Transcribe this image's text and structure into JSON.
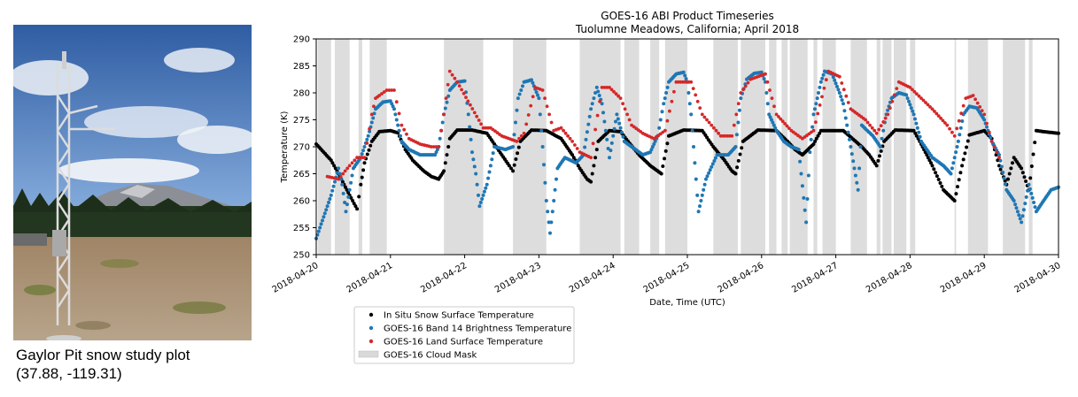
{
  "photo": {
    "caption_line1": "Gaylor Pit snow study plot",
    "caption_line2": "(37.88, -119.31)"
  },
  "colors": {
    "in_situ": "#000000",
    "band14": "#1f77b4",
    "lst": "#d62728",
    "cloud": "#d9d9d9"
  },
  "chart_data": {
    "type": "scatter",
    "title": "GOES-16 ABI Product Timeseries",
    "subtitle": "Tuolumne Meadows, California; April 2018",
    "xlabel": "Date, Time (UTC)",
    "ylabel": "Temperature (K)",
    "xlim": [
      0,
      10
    ],
    "ylim": [
      250,
      290
    ],
    "yticks": [
      250,
      255,
      260,
      265,
      270,
      275,
      280,
      285,
      290
    ],
    "xtick_labels": [
      "2018-04-20",
      "2018-04-21",
      "2018-04-22",
      "2018-04-23",
      "2018-04-24",
      "2018-04-25",
      "2018-04-26",
      "2018-04-27",
      "2018-04-28",
      "2018-04-29",
      "2018-04-30"
    ],
    "legend": {
      "placement": "bottom-left, below axes",
      "entries": [
        "In Situ Snow Surface Temperature",
        "GOES-16 Band 14 Brightness Temperature",
        "GOES-16 Land Surface Temperature",
        "GOES-16 Cloud Mask"
      ]
    },
    "x_unit": "days since 2018-04-20 00:00 UTC",
    "series": [
      {
        "name": "In Situ Snow Surface Temperature",
        "points": [
          [
            0,
            270.5
          ],
          [
            0.1,
            269
          ],
          [
            0.2,
            267.5
          ],
          [
            0.3,
            265
          ],
          [
            0.45,
            261
          ],
          [
            0.55,
            258.5
          ],
          [
            0.6,
            263
          ],
          [
            0.65,
            267
          ],
          [
            0.75,
            271
          ],
          [
            0.85,
            272.8
          ],
          [
            1.0,
            273
          ],
          [
            1.1,
            272.6
          ],
          [
            1.2,
            269.5
          ],
          [
            1.3,
            267.5
          ],
          [
            1.45,
            265.5
          ],
          [
            1.55,
            264.5
          ],
          [
            1.65,
            264
          ],
          [
            1.72,
            265.5
          ],
          [
            1.8,
            271.5
          ],
          [
            1.9,
            273.1
          ],
          [
            2.1,
            273.1
          ],
          [
            2.3,
            272.5
          ],
          [
            2.4,
            270.5
          ],
          [
            2.5,
            268.5
          ],
          [
            2.6,
            266.5
          ],
          [
            2.65,
            265.5
          ],
          [
            2.75,
            271
          ],
          [
            2.9,
            273.1
          ],
          [
            3.1,
            273
          ],
          [
            3.3,
            271.5
          ],
          [
            3.45,
            268.5
          ],
          [
            3.55,
            266
          ],
          [
            3.65,
            264
          ],
          [
            3.7,
            263.5
          ],
          [
            3.8,
            271
          ],
          [
            3.95,
            273
          ],
          [
            4.1,
            272.8
          ],
          [
            4.2,
            271
          ],
          [
            4.35,
            268.5
          ],
          [
            4.5,
            266.5
          ],
          [
            4.6,
            265.5
          ],
          [
            4.65,
            265
          ],
          [
            4.75,
            272
          ],
          [
            4.95,
            273.1
          ],
          [
            5.2,
            273
          ],
          [
            5.35,
            270
          ],
          [
            5.5,
            267.5
          ],
          [
            5.6,
            265.5
          ],
          [
            5.65,
            265
          ],
          [
            5.75,
            271
          ],
          [
            5.95,
            273.1
          ],
          [
            6.2,
            273
          ],
          [
            6.35,
            271
          ],
          [
            6.45,
            269.5
          ],
          [
            6.55,
            268.5
          ],
          [
            6.7,
            270.5
          ],
          [
            6.8,
            273
          ],
          [
            7.1,
            273
          ],
          [
            7.35,
            270
          ],
          [
            7.45,
            268.5
          ],
          [
            7.55,
            266.5
          ],
          [
            7.65,
            271
          ],
          [
            7.8,
            273.1
          ],
          [
            8.05,
            273
          ],
          [
            8.15,
            270.5
          ],
          [
            8.3,
            266.5
          ],
          [
            8.45,
            262
          ],
          [
            8.6,
            260
          ],
          [
            8.7,
            266.5
          ],
          [
            8.8,
            272.2
          ],
          [
            9.0,
            273
          ],
          [
            9.1,
            271.5
          ],
          [
            9.2,
            266.5
          ],
          [
            9.3,
            263
          ],
          [
            9.4,
            268
          ],
          [
            9.5,
            266
          ],
          [
            9.6,
            262
          ],
          [
            9.7,
            273
          ],
          [
            9.8,
            272.8
          ],
          [
            10.0,
            272.5
          ]
        ]
      },
      {
        "name": "GOES-16 Band 14 Brightness Temperature",
        "points": [
          [
            0,
            253
          ],
          [
            0.1,
            257
          ],
          [
            0.2,
            261
          ],
          [
            0.3,
            266
          ],
          [
            0.35,
            263
          ],
          [
            0.4,
            258
          ],
          [
            0.5,
            266
          ],
          [
            0.6,
            268
          ],
          [
            0.7,
            272
          ],
          [
            0.8,
            277
          ],
          [
            0.9,
            278.3
          ],
          [
            1.0,
            278.5
          ],
          [
            1.05,
            277
          ],
          [
            1.15,
            271
          ],
          [
            1.25,
            269.5
          ],
          [
            1.4,
            268.5
          ],
          [
            1.6,
            268.5
          ],
          [
            1.65,
            270
          ],
          [
            1.72,
            276
          ],
          [
            1.8,
            280.5
          ],
          [
            1.9,
            282
          ],
          [
            2.0,
            282.2
          ],
          [
            2.05,
            276
          ],
          [
            2.1,
            269
          ],
          [
            2.15,
            265
          ],
          [
            2.2,
            259
          ],
          [
            2.3,
            263
          ],
          [
            2.4,
            270
          ],
          [
            2.55,
            269.5
          ],
          [
            2.65,
            270
          ],
          [
            2.72,
            279
          ],
          [
            2.8,
            282
          ],
          [
            2.9,
            282.4
          ],
          [
            3.0,
            279
          ],
          [
            3.05,
            270
          ],
          [
            3.1,
            260
          ],
          [
            3.15,
            254
          ],
          [
            3.25,
            266
          ],
          [
            3.35,
            268
          ],
          [
            3.5,
            267
          ],
          [
            3.6,
            268.5
          ],
          [
            3.7,
            277
          ],
          [
            3.78,
            281
          ],
          [
            3.85,
            278
          ],
          [
            3.95,
            268
          ],
          [
            4.05,
            276
          ],
          [
            4.15,
            271
          ],
          [
            4.25,
            270
          ],
          [
            4.4,
            268.5
          ],
          [
            4.5,
            269
          ],
          [
            4.6,
            272
          ],
          [
            4.68,
            278
          ],
          [
            4.75,
            282
          ],
          [
            4.85,
            283.5
          ],
          [
            4.95,
            283.8
          ],
          [
            5.0,
            282
          ],
          [
            5.05,
            276
          ],
          [
            5.15,
            258
          ],
          [
            5.25,
            264
          ],
          [
            5.4,
            268.5
          ],
          [
            5.55,
            268.5
          ],
          [
            5.65,
            270
          ],
          [
            5.72,
            279
          ],
          [
            5.8,
            282.5
          ],
          [
            5.9,
            283.6
          ],
          [
            6.0,
            283.8
          ],
          [
            6.05,
            282
          ],
          [
            6.1,
            276
          ],
          [
            6.2,
            273
          ],
          [
            6.3,
            271
          ],
          [
            6.4,
            270
          ],
          [
            6.5,
            269.5
          ],
          [
            6.6,
            256
          ],
          [
            6.65,
            269
          ],
          [
            6.7,
            276
          ],
          [
            6.8,
            282
          ],
          [
            6.85,
            284
          ],
          [
            6.95,
            283.5
          ],
          [
            7.05,
            280
          ],
          [
            7.1,
            278
          ],
          [
            7.2,
            270
          ],
          [
            7.3,
            262
          ],
          [
            7.35,
            274
          ],
          [
            7.5,
            272
          ],
          [
            7.6,
            270
          ],
          [
            7.68,
            276
          ],
          [
            7.75,
            279
          ],
          [
            7.85,
            280
          ],
          [
            7.95,
            279.6
          ],
          [
            8.05,
            276
          ],
          [
            8.15,
            271
          ],
          [
            8.3,
            268
          ],
          [
            8.45,
            266.5
          ],
          [
            8.55,
            265
          ],
          [
            8.65,
            271
          ],
          [
            8.72,
            276
          ],
          [
            8.8,
            277.5
          ],
          [
            8.9,
            277.2
          ],
          [
            9.0,
            275
          ],
          [
            9.1,
            271
          ],
          [
            9.2,
            268.5
          ],
          [
            9.3,
            262
          ],
          [
            9.4,
            260
          ],
          [
            9.5,
            256
          ],
          [
            9.6,
            263
          ],
          [
            9.7,
            258
          ],
          [
            9.8,
            260
          ],
          [
            9.9,
            262
          ],
          [
            10.0,
            262.5
          ]
        ]
      },
      {
        "name": "GOES-16 Land Surface Temperature",
        "points": [
          [
            0.15,
            264.5
          ],
          [
            0.3,
            264
          ],
          [
            0.45,
            266.5
          ],
          [
            0.55,
            268
          ],
          [
            0.65,
            268
          ],
          [
            0.75,
            276
          ],
          [
            0.8,
            279
          ],
          [
            0.85,
            279.5
          ],
          [
            0.95,
            280.5
          ],
          [
            1.05,
            280.5
          ],
          [
            1.15,
            274
          ],
          [
            1.25,
            271.5
          ],
          [
            1.4,
            270.5
          ],
          [
            1.55,
            270
          ],
          [
            1.65,
            270
          ],
          [
            1.75,
            279
          ],
          [
            1.8,
            284
          ],
          [
            1.9,
            282
          ],
          [
            2.25,
            273.5
          ],
          [
            2.35,
            273.5
          ],
          [
            2.5,
            272
          ],
          [
            2.7,
            271
          ],
          [
            2.8,
            272.5
          ],
          [
            2.95,
            281
          ],
          [
            3.05,
            280.5
          ],
          [
            3.2,
            273
          ],
          [
            3.3,
            273.5
          ],
          [
            3.45,
            271
          ],
          [
            3.55,
            269
          ],
          [
            3.7,
            268
          ],
          [
            3.85,
            281
          ],
          [
            3.95,
            281
          ],
          [
            4.1,
            279
          ],
          [
            4.25,
            274
          ],
          [
            4.4,
            272.5
          ],
          [
            4.55,
            271.5
          ],
          [
            4.7,
            273
          ],
          [
            4.85,
            282
          ],
          [
            5.05,
            282
          ],
          [
            5.2,
            276
          ],
          [
            5.45,
            272
          ],
          [
            5.6,
            272
          ],
          [
            5.72,
            280
          ],
          [
            5.85,
            282.5
          ],
          [
            6.05,
            283.5
          ],
          [
            6.2,
            276
          ],
          [
            6.4,
            273
          ],
          [
            6.55,
            271.5
          ],
          [
            6.7,
            273
          ],
          [
            6.9,
            284
          ],
          [
            7.05,
            283
          ],
          [
            7.2,
            277
          ],
          [
            7.4,
            275
          ],
          [
            7.55,
            272.5
          ],
          [
            7.7,
            276
          ],
          [
            7.85,
            282
          ],
          [
            8.0,
            281
          ],
          [
            8.15,
            279
          ],
          [
            8.3,
            277
          ],
          [
            8.5,
            274
          ],
          [
            8.6,
            272
          ],
          [
            8.75,
            279
          ],
          [
            8.85,
            279.5
          ],
          [
            9.0,
            276
          ],
          [
            9.1,
            271
          ],
          [
            9.2,
            268
          ]
        ]
      },
      {
        "name": "GOES-16 Cloud Mask",
        "intervals": [
          [
            0.02,
            0.2
          ],
          [
            0.25,
            0.45
          ],
          [
            0.57,
            0.62
          ],
          [
            0.72,
            0.95
          ],
          [
            1.72,
            2.25
          ],
          [
            2.65,
            3.1
          ],
          [
            3.55,
            4.1
          ],
          [
            4.15,
            4.35
          ],
          [
            4.5,
            4.62
          ],
          [
            4.7,
            5.0
          ],
          [
            5.35,
            5.68
          ],
          [
            5.72,
            6.05
          ],
          [
            6.1,
            6.2
          ],
          [
            6.27,
            6.35
          ],
          [
            6.38,
            6.62
          ],
          [
            6.7,
            6.75
          ],
          [
            6.82,
            7.0
          ],
          [
            7.2,
            7.42
          ],
          [
            7.55,
            7.6
          ],
          [
            7.63,
            7.75
          ],
          [
            7.78,
            7.95
          ],
          [
            8.0,
            8.07
          ],
          [
            8.6,
            8.62
          ],
          [
            8.78,
            9.05
          ],
          [
            9.25,
            9.55
          ],
          [
            9.6,
            9.65
          ]
        ]
      }
    ]
  }
}
